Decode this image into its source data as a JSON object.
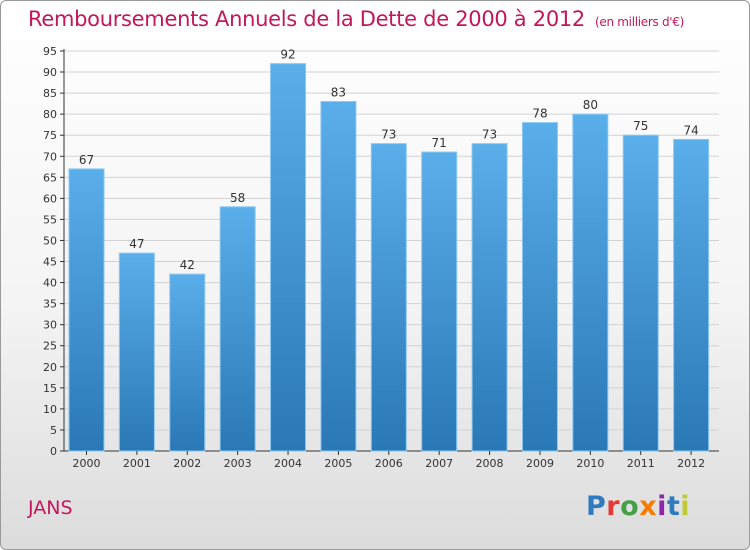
{
  "header": {
    "title": "Remboursements Annuels de la Dette de 2000 à 2012",
    "unit": "(en milliers d'€)"
  },
  "footer": {
    "commune": "JANS",
    "brand_letters": [
      {
        "char": "P",
        "color": "#2e7bbf"
      },
      {
        "char": "r",
        "color": "#e53935"
      },
      {
        "char": "o",
        "color": "#43a047"
      },
      {
        "char": "x",
        "color": "#f57c00"
      },
      {
        "char": "i",
        "color": "#8e24aa"
      },
      {
        "char": "t",
        "color": "#2e7bbf"
      },
      {
        "char": "i",
        "color": "#c0ca33"
      }
    ]
  },
  "colors": {
    "title": "#c2185b",
    "bar_top": "#5aaeea",
    "bar_bottom": "#2a78b6",
    "bar_edge": "#8cc8f0",
    "grid": "#d2d2d2",
    "axis": "#333333"
  },
  "chart_data": {
    "type": "bar",
    "title": "Remboursements Annuels de la Dette de 2000 à 2012",
    "categories": [
      "2000",
      "2001",
      "2002",
      "2003",
      "2004",
      "2005",
      "2006",
      "2007",
      "2008",
      "2009",
      "2010",
      "2011",
      "2012"
    ],
    "values": [
      67,
      47,
      42,
      58,
      92,
      83,
      73,
      71,
      73,
      78,
      80,
      75,
      74
    ],
    "ylim": [
      0,
      95
    ],
    "yticks": [
      0,
      5,
      10,
      15,
      20,
      25,
      30,
      35,
      40,
      45,
      50,
      55,
      60,
      65,
      70,
      75,
      80,
      85,
      90,
      95
    ],
    "grid": true,
    "data_labels": true
  }
}
